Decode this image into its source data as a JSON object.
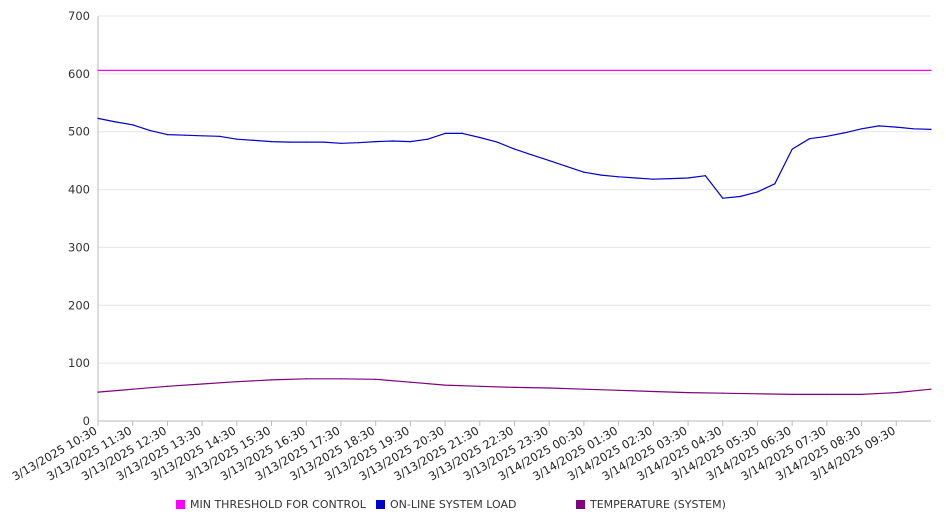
{
  "chart_data": {
    "type": "line",
    "title": "",
    "xlabel": "",
    "ylabel": "",
    "ylim": [
      0,
      700
    ],
    "yticks": [
      0,
      100,
      200,
      300,
      400,
      500,
      600,
      700
    ],
    "grid": true,
    "legend_position": "bottom",
    "x_tick_labels": [
      "3/13/2025 10:30",
      "3/13/2025 11:30",
      "3/13/2025 12:30",
      "3/13/2025 13:30",
      "3/13/2025 14:30",
      "3/13/2025 15:30",
      "3/13/2025 16:30",
      "3/13/2025 17:30",
      "3/13/2025 18:30",
      "3/13/2025 19:30",
      "3/13/2025 20:30",
      "3/13/2025 21:30",
      "3/13/2025 22:30",
      "3/13/2025 23:30",
      "3/14/2025 00:30",
      "3/14/2025 01:30",
      "3/14/2025 02:30",
      "3/14/2025 03:30",
      "3/14/2025 04:30",
      "3/14/2025 05:30",
      "3/14/2025 06:30",
      "3/14/2025 07:30",
      "3/14/2025 08:30",
      "3/14/2025 09:30"
    ],
    "series": [
      {
        "name": "MIN THRESHOLD FOR CONTROL",
        "color": "#ff00ff",
        "x": [
          "3/13/2025 10:30",
          "3/14/2025 10:30"
        ],
        "values": [
          606,
          606
        ]
      },
      {
        "name": "ON-LINE SYSTEM LOAD",
        "color": "#0000cc",
        "x": [
          "3/13/2025 10:30",
          "3/13/2025 11:00",
          "3/13/2025 11:30",
          "3/13/2025 12:00",
          "3/13/2025 12:30",
          "3/13/2025 13:00",
          "3/13/2025 13:30",
          "3/13/2025 14:00",
          "3/13/2025 14:30",
          "3/13/2025 15:00",
          "3/13/2025 15:30",
          "3/13/2025 16:00",
          "3/13/2025 16:30",
          "3/13/2025 17:00",
          "3/13/2025 17:30",
          "3/13/2025 18:00",
          "3/13/2025 18:30",
          "3/13/2025 19:00",
          "3/13/2025 19:30",
          "3/13/2025 20:00",
          "3/13/2025 20:30",
          "3/13/2025 21:00",
          "3/13/2025 21:30",
          "3/13/2025 22:00",
          "3/13/2025 22:30",
          "3/13/2025 23:00",
          "3/13/2025 23:30",
          "3/14/2025 00:00",
          "3/14/2025 00:30",
          "3/14/2025 01:00",
          "3/14/2025 01:30",
          "3/14/2025 02:00",
          "3/14/2025 02:30",
          "3/14/2025 03:00",
          "3/14/2025 03:30",
          "3/14/2025 04:00",
          "3/14/2025 04:30",
          "3/14/2025 05:00",
          "3/14/2025 05:30",
          "3/14/2025 06:00",
          "3/14/2025 06:30",
          "3/14/2025 07:00",
          "3/14/2025 07:30",
          "3/14/2025 08:00",
          "3/14/2025 08:30",
          "3/14/2025 09:00",
          "3/14/2025 09:30",
          "3/14/2025 10:00",
          "3/14/2025 10:30"
        ],
        "values": [
          523,
          517,
          512,
          502,
          495,
          494,
          493,
          492,
          487,
          485,
          483,
          482,
          482,
          482,
          480,
          481,
          483,
          484,
          483,
          487,
          497,
          497,
          490,
          482,
          470,
          460,
          450,
          440,
          430,
          425,
          422,
          420,
          418,
          419,
          420,
          424,
          385,
          388,
          396,
          410,
          470,
          488,
          492,
          498,
          505,
          510,
          508,
          505,
          504
        ]
      },
      {
        "name": "TEMPERATURE (SYSTEM)",
        "color": "#800080",
        "x": [
          "3/13/2025 10:30",
          "3/13/2025 11:30",
          "3/13/2025 12:30",
          "3/13/2025 13:30",
          "3/13/2025 14:30",
          "3/13/2025 15:30",
          "3/13/2025 16:30",
          "3/13/2025 17:30",
          "3/13/2025 18:30",
          "3/13/2025 19:30",
          "3/13/2025 20:30",
          "3/13/2025 21:30",
          "3/13/2025 22:30",
          "3/13/2025 23:30",
          "3/14/2025 00:30",
          "3/14/2025 01:30",
          "3/14/2025 02:30",
          "3/14/2025 03:30",
          "3/14/2025 04:30",
          "3/14/2025 05:30",
          "3/14/2025 06:30",
          "3/14/2025 07:30",
          "3/14/2025 08:30",
          "3/14/2025 09:30",
          "3/14/2025 10:30"
        ],
        "values": [
          50,
          55,
          60,
          64,
          68,
          71,
          73,
          73,
          72,
          67,
          62,
          60,
          58,
          57,
          55,
          53,
          51,
          49,
          48,
          47,
          46,
          46,
          46,
          49,
          55
        ]
      }
    ]
  }
}
